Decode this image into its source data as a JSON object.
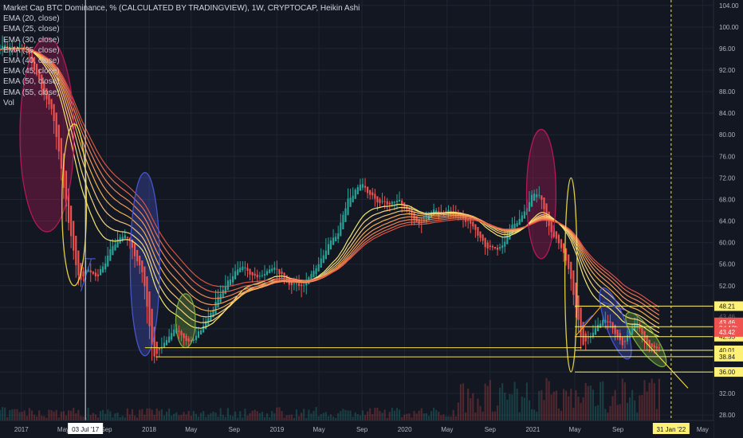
{
  "chart_title": "Market Cap BTC Dominance, % (CALCULATED BY TRADINGVIEW), 1W, CRYPTOCAP, Heikin Ashi",
  "indicators": [
    "EMA (20, close)",
    "EMA (25, close)",
    "EMA (30, close)",
    "EMA (35, close)",
    "EMA (40, close)",
    "EMA (45, close)",
    "EMA (50, close)",
    "EMA (55, close)",
    "Vol"
  ],
  "colors": {
    "background": "#131722",
    "grid": "#1f2433",
    "axis_text": "#b2b5be",
    "candle_up": "#26a69a",
    "candle_down": "#ef5350",
    "ema": [
      "#fff176",
      "#ffe082",
      "#ffcc80",
      "#ffb74d",
      "#ff9e5e",
      "#f78a5a",
      "#ef7050",
      "#e25545"
    ],
    "yellow_line": "#f5e04a",
    "ellipse_pink": "#c2185b",
    "ellipse_blue": "#4a5ad8",
    "ellipse_green": "#7cb342",
    "price_red": "#ef5350",
    "tag_yellow": "#fff176"
  },
  "chart_data": {
    "type": "candlestick",
    "title": "Market Cap BTC Dominance, % (CALCULATED BY TRADINGVIEW), 1W, CRYPTOCAP, Heikin Ashi",
    "x_axis": {
      "start": "2016-11-01",
      "end": "2022-06-01",
      "ticks": [
        {
          "date": "2017-01-01",
          "label": "2017"
        },
        {
          "date": "2017-05-01",
          "label": "May"
        },
        {
          "date": "2017-09-01",
          "label": "Sep"
        },
        {
          "date": "2018-01-01",
          "label": "2018"
        },
        {
          "date": "2018-05-01",
          "label": "May"
        },
        {
          "date": "2018-09-01",
          "label": "Sep"
        },
        {
          "date": "2019-01-01",
          "label": "2019"
        },
        {
          "date": "2019-05-01",
          "label": "May"
        },
        {
          "date": "2019-09-01",
          "label": "Sep"
        },
        {
          "date": "2020-01-01",
          "label": "2020"
        },
        {
          "date": "2020-05-01",
          "label": "May"
        },
        {
          "date": "2020-09-01",
          "label": "Sep"
        },
        {
          "date": "2021-01-01",
          "label": "2021"
        },
        {
          "date": "2021-05-01",
          "label": "May"
        },
        {
          "date": "2021-09-01",
          "label": "Sep"
        },
        {
          "date": "2022-05-01",
          "label": "May"
        }
      ],
      "crosshair": {
        "date": "2017-07-03",
        "label": "03 Jul '17"
      },
      "marker": {
        "date": "2022-01-31",
        "label": "31 Jan '22"
      }
    },
    "y_axis": {
      "range": [
        27,
        105
      ],
      "ticks": [
        28,
        32,
        36,
        40,
        44,
        48,
        52,
        56,
        60,
        64,
        68,
        72,
        76,
        80,
        84,
        88,
        92,
        96,
        100,
        104
      ],
      "tick_labels": [
        "28.00",
        "32.00",
        "36.00",
        "40.00",
        "44.00",
        "48.00",
        "52.00",
        "56.00",
        "60.00",
        "64.00",
        "68.00",
        "72.00",
        "76.00",
        "80.00",
        "84.00",
        "88.00",
        "92.00",
        "96.00",
        "100.00",
        "104.00"
      ]
    },
    "price_path": [
      [
        "2016-11-01",
        96.6
      ],
      [
        "2017-01-15",
        95.5
      ],
      [
        "2017-03-01",
        88
      ],
      [
        "2017-04-01",
        83
      ],
      [
        "2017-05-15",
        62
      ],
      [
        "2017-06-15",
        52
      ],
      [
        "2017-07-01",
        56
      ],
      [
        "2017-08-01",
        53
      ],
      [
        "2017-09-10",
        59
      ],
      [
        "2017-10-20",
        62
      ],
      [
        "2017-11-15",
        58
      ],
      [
        "2017-12-10",
        55
      ],
      [
        "2018-01-10",
        38.5
      ],
      [
        "2018-02-10",
        41
      ],
      [
        "2018-03-10",
        44
      ],
      [
        "2018-04-20",
        41.5
      ],
      [
        "2018-05-20",
        43
      ],
      [
        "2018-06-20",
        47
      ],
      [
        "2018-08-10",
        53
      ],
      [
        "2018-09-20",
        55
      ],
      [
        "2018-11-20",
        54
      ],
      [
        "2018-12-20",
        55.5
      ],
      [
        "2019-02-10",
        52
      ],
      [
        "2019-03-20",
        52
      ],
      [
        "2019-05-01",
        57
      ],
      [
        "2019-06-20",
        62
      ],
      [
        "2019-07-20",
        68
      ],
      [
        "2019-09-01",
        70.5
      ],
      [
        "2019-10-01",
        68
      ],
      [
        "2019-11-15",
        67
      ],
      [
        "2019-12-15",
        68
      ],
      [
        "2020-02-01",
        63
      ],
      [
        "2020-03-15",
        65.5
      ],
      [
        "2020-05-01",
        66
      ],
      [
        "2020-07-01",
        64
      ],
      [
        "2020-08-20",
        59
      ],
      [
        "2020-09-20",
        58
      ],
      [
        "2020-11-01",
        63
      ],
      [
        "2020-12-20",
        68
      ],
      [
        "2021-01-15",
        70
      ],
      [
        "2021-02-15",
        62
      ],
      [
        "2021-04-01",
        58
      ],
      [
        "2021-05-20",
        41
      ],
      [
        "2021-06-20",
        44
      ],
      [
        "2021-08-01",
        46
      ],
      [
        "2021-09-15",
        41
      ],
      [
        "2021-10-15",
        45
      ],
      [
        "2021-11-20",
        41
      ],
      [
        "2021-12-31",
        40
      ]
    ],
    "ema_spans": [
      20,
      25,
      30,
      35,
      40,
      45,
      50,
      55
    ],
    "horizontal_levels": [
      {
        "value": 48.21,
        "label": "48.21",
        "color": "#fff176"
      },
      {
        "value": 44.4,
        "label": "",
        "color": "#fff176"
      },
      {
        "value": 42.55,
        "label": "42.55",
        "color": "#fff176"
      },
      {
        "value": 40.01,
        "label": "40.01",
        "color": "#fff176"
      },
      {
        "value": 38.84,
        "label": "38.84",
        "color": "#fff176"
      },
      {
        "value": 36.0,
        "label": "36.00",
        "color": "#fff176"
      }
    ],
    "price_labels": [
      {
        "value": 45.2,
        "label": "43.46",
        "color": "#ef5350"
      },
      {
        "value": 44.1,
        "label": "2d 13h",
        "color": "#ef5350"
      },
      {
        "value": 43.42,
        "label": "43.42",
        "color": "#ef5350"
      }
    ],
    "axis_faded_label": {
      "value": 46.3,
      "label": "43.46"
    },
    "ellipses": [
      {
        "cx_date": "2017-03-15",
        "cy_value": 80,
        "rx_weeks": 11,
        "ry_value": 18,
        "rotate": 0,
        "color": "pink",
        "filled": true
      },
      {
        "cx_date": "2017-06-01",
        "cy_value": 67,
        "rx_weeks": 5,
        "ry_value": 15,
        "rotate": 0,
        "color": "yellow",
        "filled": false
      },
      {
        "cx_date": "2017-12-20",
        "cy_value": 56,
        "rx_weeks": 6,
        "ry_value": 17,
        "rotate": 0,
        "color": "blue",
        "filled": true
      },
      {
        "cx_date": "2018-04-15",
        "cy_value": 45.5,
        "rx_weeks": 4,
        "ry_value": 5,
        "rotate": 0,
        "color": "green",
        "filled": true
      },
      {
        "cx_date": "2021-01-25",
        "cy_value": 69,
        "rx_weeks": 6,
        "ry_value": 12,
        "rotate": 0,
        "color": "pink",
        "filled": true
      },
      {
        "cx_date": "2021-04-20",
        "cy_value": 54,
        "rx_weeks": 2.5,
        "ry_value": 18,
        "rotate": 0,
        "color": "yellow",
        "filled": false
      },
      {
        "cx_date": "2021-08-25",
        "cy_value": 45,
        "rx_weeks": 4,
        "ry_value": 7,
        "rotate": -20,
        "color": "blue",
        "filled": true
      },
      {
        "cx_date": "2021-11-20",
        "cy_value": 42,
        "rx_weeks": 4,
        "ry_value": 6,
        "rotate": -35,
        "color": "green",
        "filled": true
      }
    ],
    "trendlines": [
      {
        "from": [
          "2017-06-20",
          51
        ],
        "to": [
          "2017-07-20",
          57
        ],
        "color": "blue"
      },
      {
        "from": [
          "2017-07-01",
          57
        ],
        "to": [
          "2017-08-01",
          57
        ],
        "color": "blue"
      },
      {
        "from": [
          "2018-01-20",
          38.8
        ],
        "to": [
          "2021-09-15",
          38.8
        ],
        "color": "yellow"
      },
      {
        "from": [
          "2017-12-20",
          40.5
        ],
        "to": [
          "2021-05-20",
          40.5
        ],
        "color": "yellow"
      },
      {
        "from": [
          "2021-05-01",
          42.5
        ],
        "to": [
          "2021-07-15",
          48.2
        ],
        "color": "orange"
      },
      {
        "from": [
          "2021-05-01",
          48.2
        ],
        "to": [
          "2021-08-01",
          48.2
        ],
        "color": "yellow"
      },
      {
        "from": [
          "2021-07-20",
          49
        ],
        "to": [
          "2021-09-20",
          47.5
        ],
        "color": "blue"
      },
      {
        "from": [
          "2021-10-15",
          44
        ],
        "to": [
          "2022-03-20",
          33
        ],
        "color": "yellow"
      },
      {
        "from": [
          "2021-05-20",
          44.5
        ],
        "to": [
          "2021-06-20",
          46.5
        ],
        "color": "blue"
      }
    ]
  }
}
